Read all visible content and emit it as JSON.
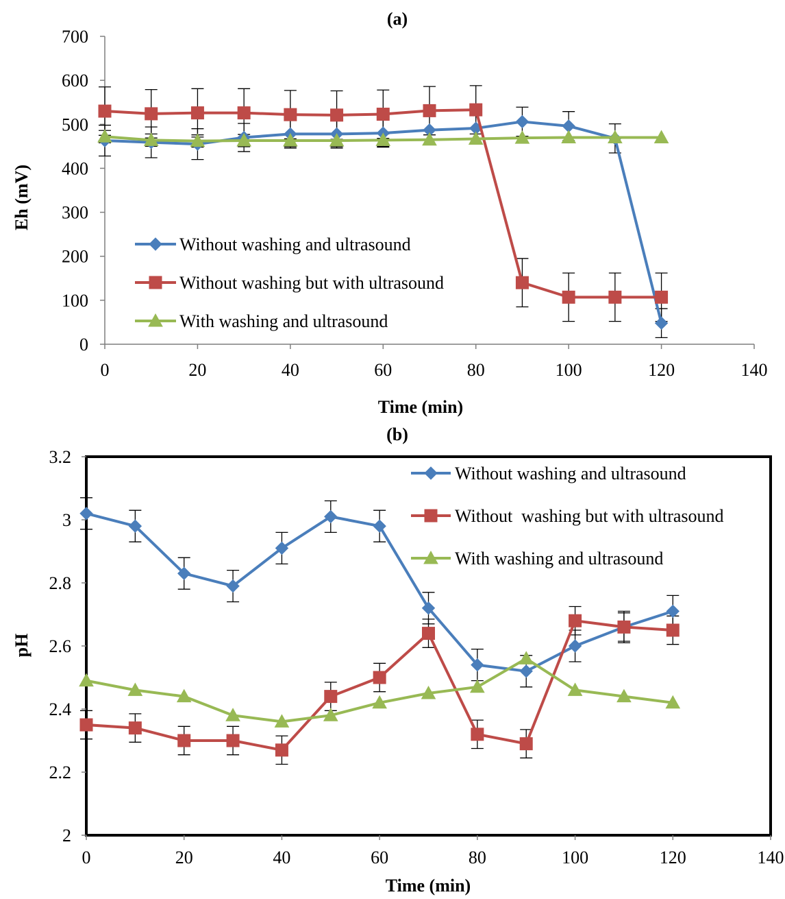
{
  "chart_data": [
    {
      "type": "line",
      "title": "(a)",
      "xlabel": "Time (min)",
      "ylabel": "Eh (mV)",
      "xlim": [
        0,
        140
      ],
      "ylim": [
        0,
        700
      ],
      "xticks": [
        0,
        20,
        40,
        60,
        80,
        100,
        120,
        140
      ],
      "yticks": [
        0,
        100,
        200,
        300,
        400,
        500,
        600,
        700
      ],
      "legend_position": "lower-left",
      "series": [
        {
          "name": "Without washing and ultrasound",
          "color": "#4a7ebb",
          "marker": "diamond",
          "x": [
            0,
            10,
            20,
            30,
            40,
            50,
            60,
            70,
            80,
            90,
            100,
            110,
            120
          ],
          "y": [
            463,
            459,
            455,
            470,
            478,
            478,
            480,
            487,
            491,
            506,
            496,
            468,
            48
          ],
          "error": [
            35,
            35,
            35,
            32,
            32,
            32,
            32,
            0,
            0,
            33,
            33,
            33,
            33
          ],
          "error_style": "both"
        },
        {
          "name": "Without washing but with ultrasound",
          "color": "#be4b48",
          "marker": "square",
          "x": [
            0,
            10,
            20,
            30,
            40,
            50,
            60,
            70,
            80,
            90,
            100,
            110,
            120
          ],
          "y": [
            530,
            524,
            526,
            526,
            522,
            521,
            523,
            531,
            533,
            140,
            107,
            107,
            107
          ],
          "error": [
            55,
            55,
            55,
            55,
            55,
            55,
            55,
            55,
            55,
            55,
            55,
            55,
            55
          ],
          "error_style": "both"
        },
        {
          "name": "With washing and ultrasound",
          "color": "#98b954",
          "marker": "triangle",
          "x": [
            0,
            10,
            20,
            30,
            40,
            50,
            60,
            70,
            80,
            90,
            100,
            110,
            120
          ],
          "y": [
            472,
            464,
            462,
            463,
            463,
            463,
            464,
            465,
            467,
            469,
            470,
            470,
            470
          ],
          "error": [
            14,
            14,
            14,
            14,
            14,
            14,
            14,
            0,
            0,
            0,
            0,
            0,
            0
          ],
          "error_style": "both"
        }
      ]
    },
    {
      "type": "line",
      "title": "(b)",
      "xlabel": "Time (min)",
      "ylabel": "pH",
      "xlim": [
        0,
        140
      ],
      "ylim": [
        2,
        3.2
      ],
      "xticks": [
        0,
        20,
        40,
        60,
        80,
        100,
        120,
        140
      ],
      "yticks": [
        2,
        2.2,
        2.4,
        2.6,
        2.8,
        3,
        3.2
      ],
      "legend_position": "top-right",
      "frame": "thick-box",
      "series": [
        {
          "name": "Without washing and ultrasound",
          "color": "#4a7ebb",
          "marker": "diamond",
          "x": [
            0,
            10,
            20,
            30,
            40,
            50,
            60,
            70,
            80,
            90,
            100,
            110,
            120
          ],
          "y": [
            3.02,
            2.98,
            2.83,
            2.79,
            2.91,
            3.01,
            2.98,
            2.72,
            2.54,
            2.52,
            2.6,
            2.66,
            2.71
          ],
          "error": [
            0.05,
            0.05,
            0.05,
            0.05,
            0.05,
            0.05,
            0.05,
            0.05,
            0.05,
            0.05,
            0.05,
            0.05,
            0.05
          ],
          "error_style": "both"
        },
        {
          "name": "Without  washing but with ultrasound",
          "color": "#be4b48",
          "marker": "square",
          "x": [
            0,
            10,
            20,
            30,
            40,
            50,
            60,
            70,
            80,
            90,
            100,
            110,
            120
          ],
          "y": [
            2.35,
            2.34,
            2.3,
            2.3,
            2.27,
            2.44,
            2.5,
            2.64,
            2.32,
            2.29,
            2.68,
            2.66,
            2.65
          ],
          "error": [
            0.045,
            0.045,
            0.045,
            0.045,
            0.045,
            0.045,
            0.045,
            0.045,
            0.045,
            0.045,
            0.045,
            0.045,
            0.045
          ],
          "error_style": "both"
        },
        {
          "name": "With washing and ultrasound",
          "color": "#98b954",
          "marker": "triangle",
          "x": [
            0,
            10,
            20,
            30,
            40,
            50,
            60,
            70,
            80,
            90,
            100,
            110,
            120
          ],
          "y": [
            2.49,
            2.46,
            2.44,
            2.38,
            2.36,
            2.38,
            2.42,
            2.45,
            2.47,
            2.56,
            2.46,
            2.44,
            2.42
          ],
          "error": [
            0,
            0,
            0,
            0,
            0,
            0,
            0,
            0,
            0,
            0,
            0,
            0,
            0
          ],
          "error_style": "both"
        }
      ]
    }
  ]
}
